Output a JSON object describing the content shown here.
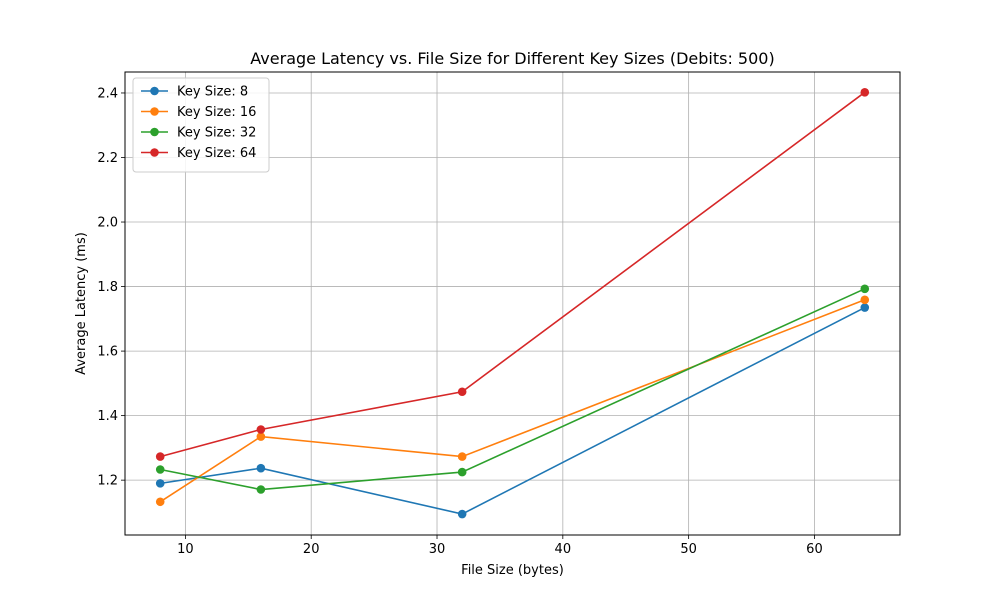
{
  "chart_data": {
    "type": "line",
    "title": "Average Latency vs. File Size for Different Key Sizes (Debits: 500)",
    "xlabel": "File Size (bytes)",
    "ylabel": "Average Latency (ms)",
    "xlim": [
      5.2,
      66.8
    ],
    "ylim": [
      1.03,
      2.465
    ],
    "xticks": [
      10,
      20,
      30,
      40,
      50,
      60
    ],
    "yticks": [
      1.2,
      1.4,
      1.6,
      1.8,
      2.0,
      2.2,
      2.4
    ],
    "grid": true,
    "legend_position": "top-left",
    "x": [
      8,
      16,
      32,
      64
    ],
    "series": [
      {
        "name": "Key Size: 8",
        "color": "#1f77b4",
        "values": [
          1.19,
          1.237,
          1.095,
          1.735
        ]
      },
      {
        "name": "Key Size: 16",
        "color": "#ff7f0e",
        "values": [
          1.133,
          1.335,
          1.273,
          1.759
        ]
      },
      {
        "name": "Key Size: 32",
        "color": "#2ca02c",
        "values": [
          1.233,
          1.171,
          1.225,
          1.793
        ]
      },
      {
        "name": "Key Size: 64",
        "color": "#d62728",
        "values": [
          1.273,
          1.357,
          1.474,
          2.402
        ]
      }
    ]
  }
}
